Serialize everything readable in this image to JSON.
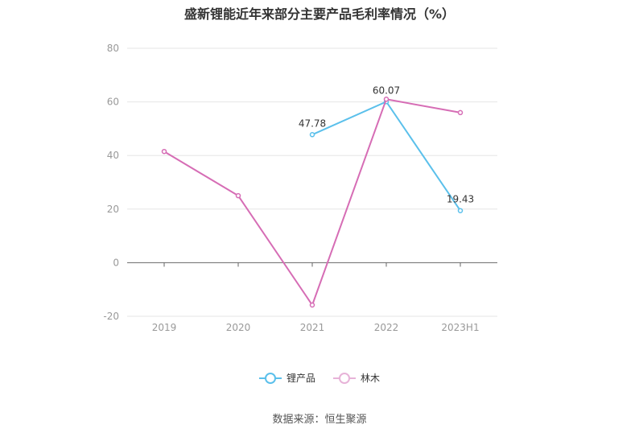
{
  "chart_data": {
    "type": "line",
    "title": "盛新锂能近年来部分主要产品毛利率情况（%）",
    "categories": [
      "2019",
      "2020",
      "2021",
      "2022",
      "2023H1"
    ],
    "ylim": [
      -20,
      80
    ],
    "yticks": [
      "80",
      "60",
      "40",
      "20",
      "0",
      "-20"
    ],
    "grid": true,
    "legend_position": "bottom",
    "series": [
      {
        "name": "锂产品",
        "color": "#5bc0eb",
        "values": [
          null,
          null,
          47.78,
          60.07,
          19.43
        ],
        "labels": [
          null,
          null,
          "47.78",
          "60.07",
          "19.43"
        ]
      },
      {
        "name": "林木",
        "color": "#d66db5",
        "values": [
          41.5,
          25.0,
          -15.8,
          61.0,
          56.0
        ],
        "labels": [
          null,
          null,
          null,
          null,
          null
        ]
      }
    ]
  },
  "source": "数据来源：恒生聚源"
}
